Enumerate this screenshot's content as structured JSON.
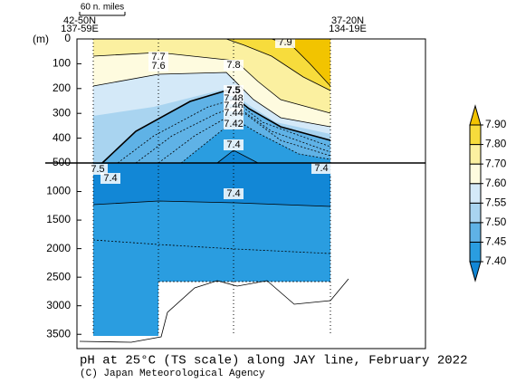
{
  "chart_data": {
    "type": "contour",
    "title": "pH at 25°C (TS scale) along JAY line, February 2022",
    "credit": "(C) Japan Meteorological Agency",
    "y_label": "(m)",
    "scale_label": "60 n. miles",
    "left_station": [
      "42-50N",
      "137-59E"
    ],
    "right_station": [
      "37-20N",
      "134-19E"
    ],
    "ylim_upper": [
      0,
      500
    ],
    "yticks_upper": [
      0,
      100,
      200,
      300,
      400,
      500
    ],
    "ylim_lower": [
      500,
      3750
    ],
    "yticks_lower": [
      1000,
      1500,
      2000,
      2500,
      3000,
      3500
    ],
    "levels": [
      {
        "value": 7.4,
        "label": "7.40"
      },
      {
        "value": 7.45,
        "label": "7.45"
      },
      {
        "value": 7.5,
        "label": "7.50"
      },
      {
        "value": 7.55,
        "label": "7.55"
      },
      {
        "value": 7.6,
        "label": "7.60"
      },
      {
        "value": 7.7,
        "label": "7.70"
      },
      {
        "value": 7.8,
        "label": "7.80"
      },
      {
        "value": 7.9,
        "label": "7.90"
      }
    ],
    "colors": [
      "#1287d6",
      "#2a9de0",
      "#5fb2e6",
      "#a9d4f0",
      "#d4e9f8",
      "#fefbdf",
      "#fbf0a0",
      "#f7dc3c",
      "#f2c400"
    ],
    "contour_labels": [
      7.9,
      7.7,
      7.6,
      7.8,
      7.5,
      7.48,
      7.46,
      7.44,
      7.42,
      7.4,
      7.4,
      7.5,
      7.4,
      7.4
    ]
  }
}
